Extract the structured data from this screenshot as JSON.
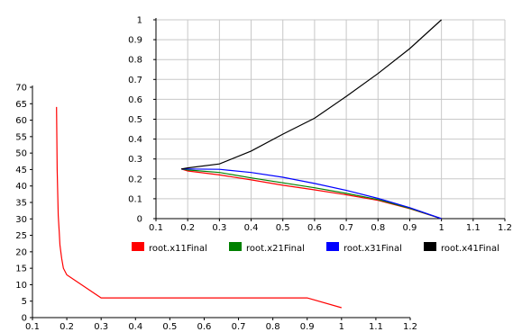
{
  "chart_data": [
    {
      "id": "back",
      "type": "line",
      "title": "",
      "xlabel": "",
      "ylabel": "",
      "xlim": [
        0.1,
        1.2
      ],
      "ylim": [
        0,
        70
      ],
      "x_ticks": [
        "0.1",
        "0.2",
        "0.3",
        "0.4",
        "0.5",
        "0.6",
        "0.7",
        "0.8",
        "0.9",
        "1",
        "1.1",
        "1.2"
      ],
      "y_ticks": [
        "0",
        "5",
        "10",
        "15",
        "20",
        "25",
        "30",
        "35",
        "40",
        "45",
        "50",
        "55",
        "60",
        "65",
        "70"
      ],
      "grid": false,
      "series": [
        {
          "color": "#ff0000",
          "x": [
            0.17,
            0.172,
            0.175,
            0.178,
            0.18,
            0.185,
            0.19,
            0.2,
            0.3,
            0.4,
            0.5,
            0.6,
            0.7,
            0.8,
            0.9,
            1.0
          ],
          "y": [
            64,
            45,
            31,
            26,
            22,
            18,
            15,
            13,
            6,
            6,
            6,
            6,
            6,
            6,
            6,
            3
          ]
        }
      ]
    },
    {
      "id": "front",
      "type": "line",
      "title": "",
      "xlabel": "",
      "ylabel": "",
      "xlim": [
        0.1,
        1.2
      ],
      "ylim": [
        0,
        1
      ],
      "x_ticks": [
        "0.1",
        "0.2",
        "0.3",
        "0.4",
        "0.5",
        "0.6",
        "0.7",
        "0.8",
        "0.9",
        "1",
        "1.1",
        "1.2"
      ],
      "y_ticks": [
        "0",
        "0.1",
        "0.2",
        "0.3",
        "0.4",
        "0.5",
        "0.6",
        "0.7",
        "0.8",
        "0.9",
        "1"
      ],
      "grid": true,
      "legend_position": "bottom",
      "series": [
        {
          "name": "root.x11Final",
          "color": "#ff0000",
          "x": [
            0.18,
            0.2,
            0.3,
            0.4,
            0.5,
            0.6,
            0.7,
            0.8,
            0.9,
            1.0
          ],
          "y": [
            0.25,
            0.24,
            0.22,
            0.195,
            0.168,
            0.145,
            0.12,
            0.092,
            0.05,
            0.0
          ]
        },
        {
          "name": "root.x21Final",
          "color": "#008000",
          "x": [
            0.18,
            0.2,
            0.3,
            0.4,
            0.5,
            0.6,
            0.7,
            0.8,
            0.9,
            1.0
          ],
          "y": [
            0.25,
            0.245,
            0.232,
            0.205,
            0.18,
            0.155,
            0.127,
            0.096,
            0.052,
            0.0
          ]
        },
        {
          "name": "root.x31Final",
          "color": "#0000ff",
          "x": [
            0.18,
            0.2,
            0.3,
            0.4,
            0.5,
            0.6,
            0.7,
            0.8,
            0.9,
            1.0
          ],
          "y": [
            0.25,
            0.25,
            0.248,
            0.232,
            0.208,
            0.177,
            0.142,
            0.102,
            0.055,
            0.0
          ]
        },
        {
          "name": "root.x41Final",
          "color": "#000000",
          "x": [
            0.18,
            0.2,
            0.3,
            0.4,
            0.5,
            0.6,
            0.7,
            0.8,
            0.9,
            1.0
          ],
          "y": [
            0.25,
            0.255,
            0.275,
            0.34,
            0.425,
            0.505,
            0.615,
            0.73,
            0.855,
            1.0
          ]
        }
      ]
    }
  ]
}
